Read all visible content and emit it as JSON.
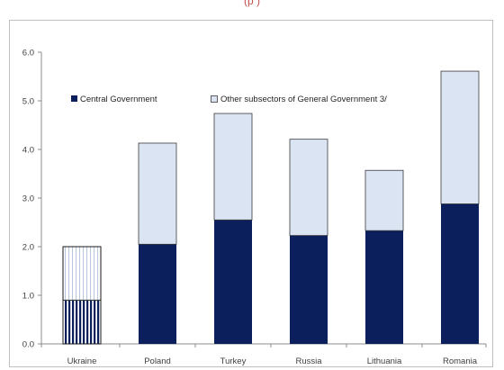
{
  "header": {
    "clipped_subtitle": "(p                    )"
  },
  "chart_data": {
    "type": "bar",
    "stacked": true,
    "categories": [
      "Ukraine",
      "Poland",
      "Turkey",
      "Russia",
      "Lithuania",
      "Romania"
    ],
    "series": [
      {
        "name": "Central Government",
        "values": [
          0.9,
          2.05,
          2.55,
          2.23,
          2.33,
          2.88
        ],
        "color": "#0b1f5c"
      },
      {
        "name": "Other subsectors of General Government 3/",
        "values": [
          1.1,
          2.08,
          2.19,
          1.98,
          1.24,
          2.73
        ],
        "color": "#dbe4f3"
      }
    ],
    "ylim": [
      0,
      6
    ],
    "yticks": [
      "0.0",
      "1.0",
      "2.0",
      "3.0",
      "4.0",
      "5.0",
      "6.0"
    ],
    "ytick_values": [
      0,
      1,
      2,
      3,
      4,
      5,
      6
    ],
    "grid": false,
    "legend": "top-left",
    "highlight_category": "Ukraine",
    "highlight_style": "striped"
  }
}
